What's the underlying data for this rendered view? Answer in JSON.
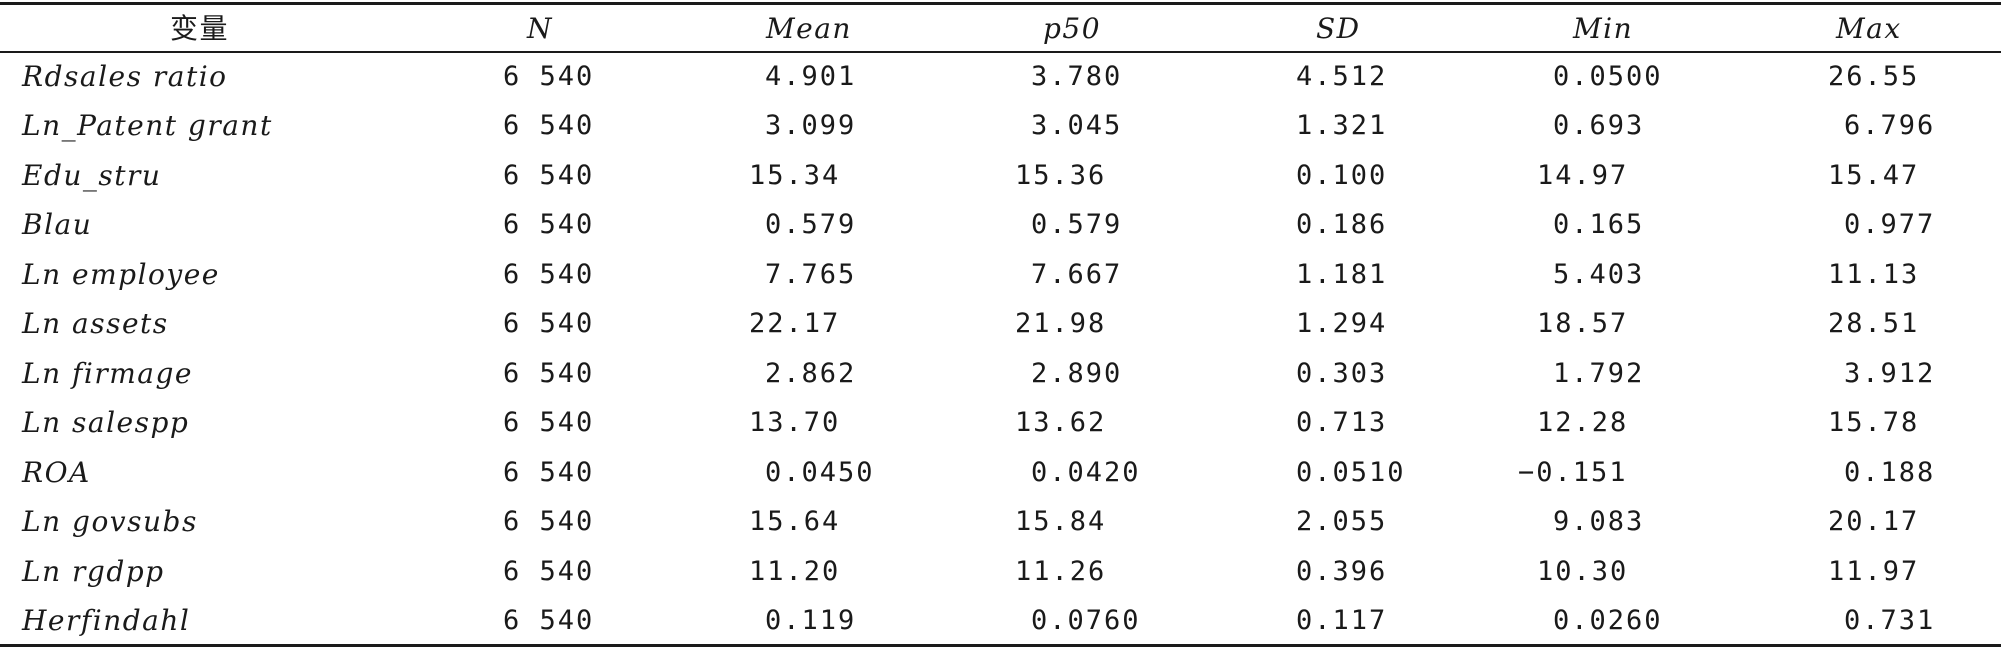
{
  "table": {
    "headers": [
      "变量",
      "N",
      "Mean",
      "p50",
      "SD",
      "Min",
      "Max"
    ],
    "rows": [
      [
        "Rdsales ratio",
        "6 540",
        "4.901",
        "3.780",
        "4.512",
        "0.0500",
        "26.55"
      ],
      [
        "Ln_Patent grant",
        "6 540",
        "3.099",
        "3.045",
        "1.321",
        "0.693",
        "6.796"
      ],
      [
        "Edu_stru",
        "6 540",
        "15.34",
        "15.36",
        "0.100",
        "14.97",
        "15.47"
      ],
      [
        "Blau",
        "6 540",
        "0.579",
        "0.579",
        "0.186",
        "0.165",
        "0.977"
      ],
      [
        "Ln employee",
        "6 540",
        "7.765",
        "7.667",
        "1.181",
        "5.403",
        "11.13"
      ],
      [
        "Ln assets",
        "6 540",
        "22.17",
        "21.98",
        "1.294",
        "18.57",
        "28.51"
      ],
      [
        "Ln firmage",
        "6 540",
        "2.862",
        "2.890",
        "0.303",
        "1.792",
        "3.912"
      ],
      [
        "Ln salespp",
        "6 540",
        "13.70",
        "13.62",
        "0.713",
        "12.28",
        "15.78"
      ],
      [
        "ROA",
        "6 540",
        "0.0450",
        "0.0420",
        "0.0510",
        "−0.151",
        "0.188"
      ],
      [
        "Ln govsubs",
        "6 540",
        "15.64",
        "15.84",
        "2.055",
        "9.083",
        "20.17"
      ],
      [
        "Ln rgdpp",
        "6 540",
        "11.20",
        "11.26",
        "0.396",
        "10.30",
        "11.97"
      ],
      [
        "Herfindahl",
        "6 540",
        "0.119",
        "0.0760",
        "0.117",
        "0.0260",
        "0.731"
      ]
    ]
  }
}
